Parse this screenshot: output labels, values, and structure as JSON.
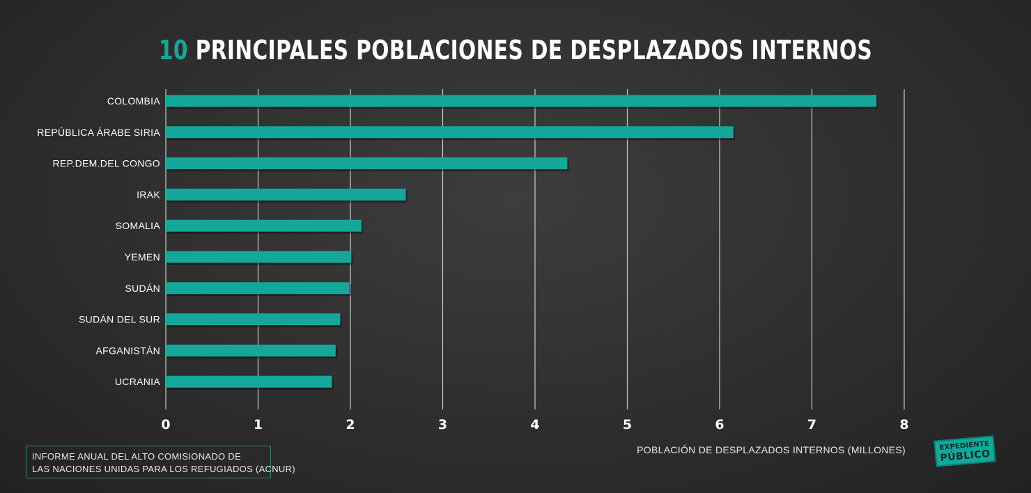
{
  "title": {
    "number": "10",
    "text": "PRINCIPALES POBLACIONES DE DESPLAZADOS INTERNOS"
  },
  "source": {
    "line1": "INFORME ANUAL DEL ALTO COMISIONADO DE",
    "line2": "LAS NACIONES UNIDAS PARA LOS REFUGIADOS (ACNUR)"
  },
  "logo": {
    "line1": "EXPEDIENTE",
    "line2": "PÚBLICO"
  },
  "colors": {
    "bar": "#14a89b",
    "accent": "#14a89b",
    "grid": "#e6e6e6",
    "text": "#ffffff"
  },
  "chart_data": {
    "type": "bar",
    "orientation": "horizontal",
    "title": "10 PRINCIPALES POBLACIONES DE DESPLAZADOS INTERNOS",
    "xlabel": "POBLACIÓN DE DESPLAZADOS INTERNOS (MILLONES)",
    "ylabel": "",
    "xlim": [
      0,
      8
    ],
    "xticks": [
      "0",
      "1",
      "2",
      "3",
      "4",
      "5",
      "6",
      "7",
      "8"
    ],
    "grid": "vertical",
    "categories": [
      "COLOMBIA",
      "REPÚBLICA ÁRABE SIRIA",
      "REP.DEM.DEL CONGO",
      "IRAK",
      "SOMALIA",
      "YEMEN",
      "SUDÁN",
      "SUDÁN DEL SUR",
      "AFGANISTÁN",
      "UCRANIA"
    ],
    "values": [
      7.7,
      6.15,
      4.35,
      2.6,
      2.12,
      2.01,
      1.99,
      1.89,
      1.84,
      1.8
    ]
  }
}
